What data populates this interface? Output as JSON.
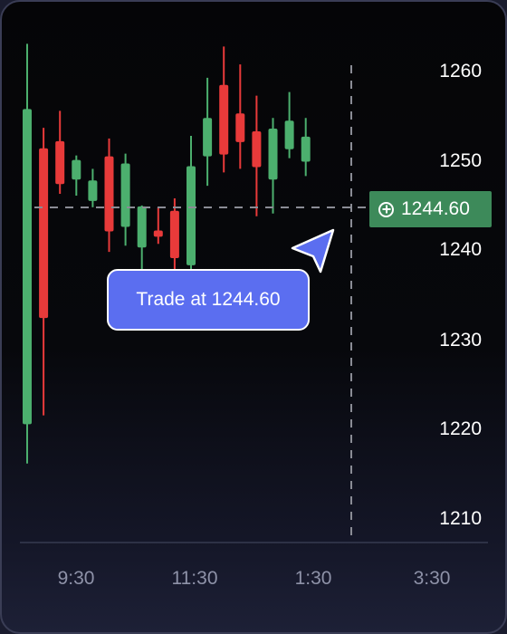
{
  "chart_data": {
    "type": "candlestick",
    "y_ticks": [
      "1260",
      "1250",
      "1240",
      "1230",
      "1220",
      "1210"
    ],
    "x_ticks": [
      "9:30",
      "11:30",
      "1:30",
      "3:30"
    ],
    "ylim": [
      1206,
      1264
    ],
    "grid": false,
    "colors": {
      "up": "#4caf6e",
      "down": "#e83a3a"
    },
    "candles": [
      {
        "o": 1220.2,
        "h": 1262.8,
        "l": 1215.8,
        "c": 1255.5
      },
      {
        "o": 1251.1,
        "h": 1253.4,
        "l": 1221.2,
        "c": 1232.1
      },
      {
        "o": 1251.9,
        "h": 1255.3,
        "l": 1246.0,
        "c": 1247.1
      },
      {
        "o": 1247.6,
        "h": 1250.3,
        "l": 1245.8,
        "c": 1249.8
      },
      {
        "o": 1245.2,
        "h": 1248.8,
        "l": 1244.5,
        "c": 1247.5
      },
      {
        "o": 1250.2,
        "h": 1252.2,
        "l": 1239.5,
        "c": 1241.8
      },
      {
        "o": 1242.3,
        "h": 1250.5,
        "l": 1240.2,
        "c": 1249.4
      },
      {
        "o": 1240.0,
        "h": 1244.7,
        "l": 1236.0,
        "c": 1244.6
      },
      {
        "o": 1241.9,
        "h": 1244.5,
        "l": 1240.4,
        "c": 1241.2
      },
      {
        "o": 1244.1,
        "h": 1245.5,
        "l": 1236.4,
        "c": 1238.8
      },
      {
        "o": 1238.0,
        "h": 1252.5,
        "l": 1235.0,
        "c": 1249.1
      },
      {
        "o": 1250.2,
        "h": 1259.0,
        "l": 1246.9,
        "c": 1254.5
      },
      {
        "o": 1258.2,
        "h": 1262.5,
        "l": 1248.4,
        "c": 1250.4
      },
      {
        "o": 1255.0,
        "h": 1260.5,
        "l": 1248.8,
        "c": 1251.8
      },
      {
        "o": 1253.0,
        "h": 1257.0,
        "l": 1243.5,
        "c": 1249.0
      },
      {
        "o": 1247.6,
        "h": 1254.5,
        "l": 1243.8,
        "c": 1253.3
      },
      {
        "o": 1251.0,
        "h": 1257.4,
        "l": 1250.0,
        "c": 1254.2
      },
      {
        "o": 1249.6,
        "h": 1254.5,
        "l": 1248.0,
        "c": 1252.4
      }
    ]
  },
  "current_price": {
    "value": 1244.6,
    "label": "1244.60",
    "icon": "plus-circle-icon"
  },
  "tooltip": {
    "text": "Trade at 1244.60"
  },
  "cursor": {
    "icon": "pointer-arrow-icon"
  }
}
